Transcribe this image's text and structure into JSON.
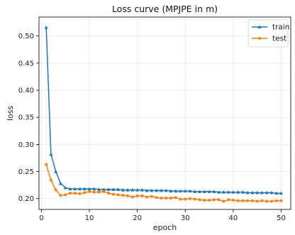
{
  "chart_data": {
    "type": "line",
    "title": "Loss curve (MPJPE in m)",
    "xlabel": "epoch",
    "ylabel": "loss",
    "xlim": [
      -0.5,
      52
    ],
    "ylim": [
      0.18,
      0.535
    ],
    "xticks": [
      0,
      10,
      20,
      30,
      40,
      50
    ],
    "yticks": [
      0.2,
      0.25,
      0.3,
      0.35,
      0.4,
      0.45,
      0.5
    ],
    "xtick_labels": [
      "0",
      "10",
      "20",
      "30",
      "40",
      "50"
    ],
    "ytick_labels": [
      "0.20",
      "0.25",
      "0.30",
      "0.35",
      "0.40",
      "0.45",
      "0.50"
    ],
    "grid": true,
    "legend_position": "top-right",
    "x": [
      1,
      2,
      3,
      4,
      5,
      6,
      7,
      8,
      9,
      10,
      11,
      12,
      13,
      14,
      15,
      16,
      17,
      18,
      19,
      20,
      21,
      22,
      23,
      24,
      25,
      26,
      27,
      28,
      29,
      30,
      31,
      32,
      33,
      34,
      35,
      36,
      37,
      38,
      39,
      40,
      41,
      42,
      43,
      44,
      45,
      46,
      47,
      48,
      49,
      50
    ],
    "series": [
      {
        "name": "train",
        "color": "#1f77b4",
        "marker": "triangle",
        "values": [
          0.516,
          0.282,
          0.25,
          0.228,
          0.22,
          0.218,
          0.218,
          0.218,
          0.218,
          0.218,
          0.218,
          0.217,
          0.217,
          0.217,
          0.217,
          0.217,
          0.216,
          0.216,
          0.216,
          0.216,
          0.216,
          0.215,
          0.215,
          0.215,
          0.215,
          0.215,
          0.214,
          0.214,
          0.214,
          0.214,
          0.214,
          0.213,
          0.213,
          0.213,
          0.213,
          0.213,
          0.212,
          0.212,
          0.212,
          0.212,
          0.212,
          0.212,
          0.211,
          0.211,
          0.211,
          0.211,
          0.211,
          0.211,
          0.21,
          0.21
        ]
      },
      {
        "name": "test",
        "color": "#ff7f0e",
        "marker": "circle",
        "values": [
          0.263,
          0.234,
          0.216,
          0.206,
          0.207,
          0.21,
          0.21,
          0.209,
          0.211,
          0.213,
          0.212,
          0.212,
          0.213,
          0.21,
          0.208,
          0.207,
          0.206,
          0.205,
          0.203,
          0.205,
          0.205,
          0.203,
          0.204,
          0.202,
          0.201,
          0.201,
          0.201,
          0.202,
          0.199,
          0.199,
          0.2,
          0.199,
          0.198,
          0.197,
          0.197,
          0.198,
          0.198,
          0.195,
          0.198,
          0.197,
          0.196,
          0.196,
          0.196,
          0.196,
          0.195,
          0.196,
          0.195,
          0.195,
          0.196,
          0.196
        ]
      }
    ]
  }
}
